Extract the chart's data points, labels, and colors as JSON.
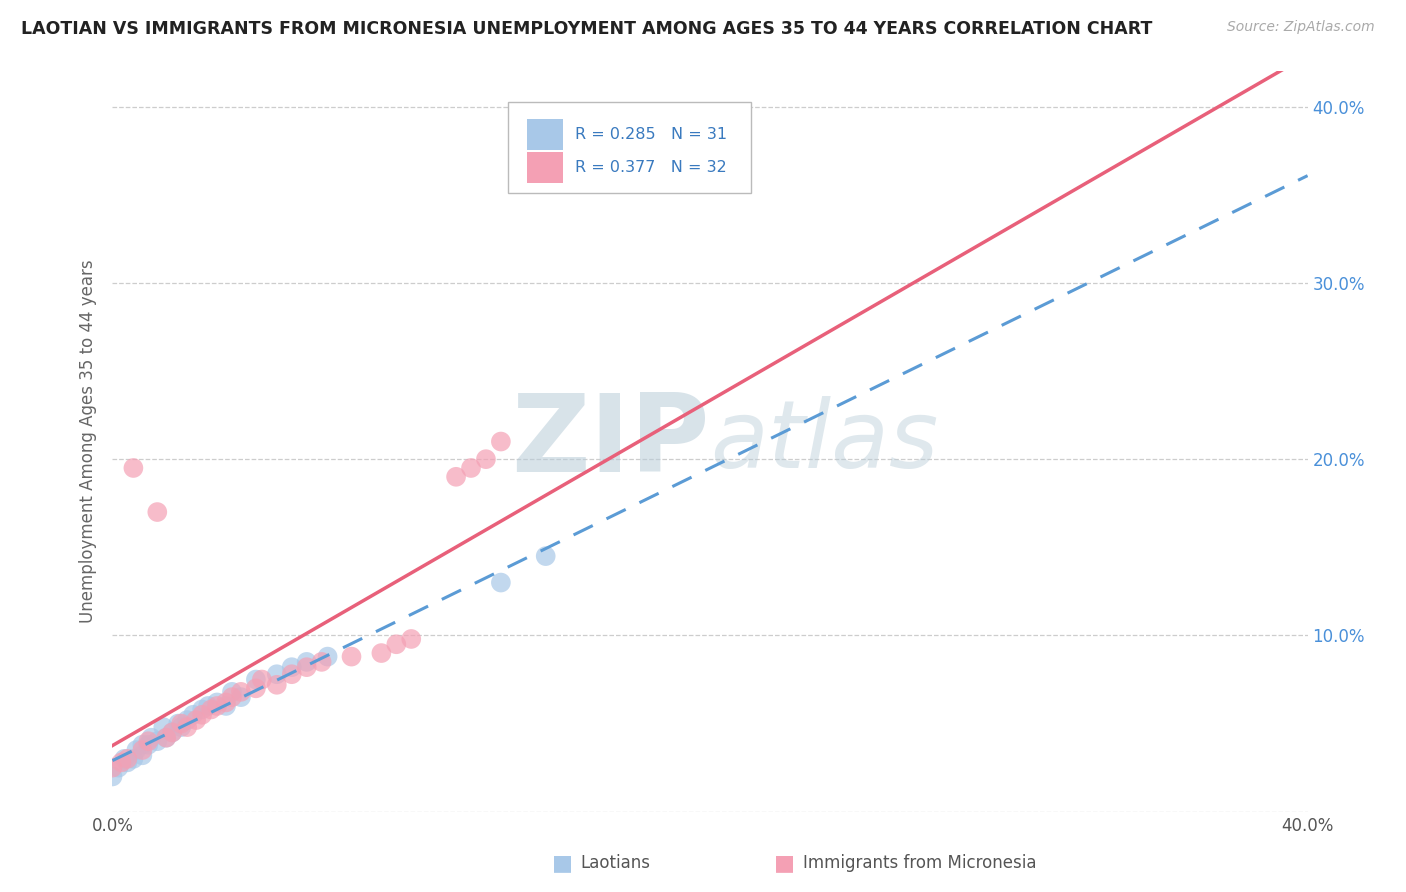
{
  "title": "LAOTIAN VS IMMIGRANTS FROM MICRONESIA UNEMPLOYMENT AMONG AGES 35 TO 44 YEARS CORRELATION CHART",
  "source": "Source: ZipAtlas.com",
  "ylabel": "Unemployment Among Ages 35 to 44 years",
  "r_laotian": 0.285,
  "n_laotian": 31,
  "r_micronesia": 0.377,
  "n_micronesia": 32,
  "xlim": [
    0.0,
    0.4
  ],
  "ylim": [
    0.0,
    0.42
  ],
  "laotian_color": "#a8c8e8",
  "micronesia_color": "#f4a0b4",
  "laotian_line_color": "#5b9bd5",
  "micronesia_line_color": "#e8607a",
  "background_color": "#ffffff",
  "grid_color": "#c8c8c8",
  "watermark_color": "#c8d8e8",
  "laotian_x": [
    0.0,
    0.002,
    0.004,
    0.005,
    0.007,
    0.008,
    0.01,
    0.01,
    0.012,
    0.013,
    0.015,
    0.017,
    0.018,
    0.02,
    0.022,
    0.023,
    0.025,
    0.027,
    0.03,
    0.032,
    0.035,
    0.038,
    0.04,
    0.043,
    0.048,
    0.055,
    0.06,
    0.065,
    0.072,
    0.13,
    0.145
  ],
  "laotian_y": [
    0.02,
    0.025,
    0.03,
    0.028,
    0.03,
    0.035,
    0.032,
    0.038,
    0.038,
    0.042,
    0.04,
    0.048,
    0.042,
    0.045,
    0.05,
    0.048,
    0.052,
    0.055,
    0.058,
    0.06,
    0.062,
    0.06,
    0.068,
    0.065,
    0.075,
    0.078,
    0.082,
    0.085,
    0.088,
    0.13,
    0.145
  ],
  "micronesia_x": [
    0.0,
    0.003,
    0.005,
    0.007,
    0.01,
    0.012,
    0.015,
    0.018,
    0.02,
    0.023,
    0.025,
    0.028,
    0.03,
    0.033,
    0.035,
    0.038,
    0.04,
    0.043,
    0.048,
    0.05,
    0.055,
    0.06,
    0.065,
    0.07,
    0.08,
    0.09,
    0.095,
    0.1,
    0.115,
    0.12,
    0.125,
    0.13
  ],
  "micronesia_y": [
    0.025,
    0.028,
    0.03,
    0.195,
    0.035,
    0.04,
    0.17,
    0.042,
    0.045,
    0.05,
    0.048,
    0.052,
    0.055,
    0.058,
    0.06,
    0.062,
    0.065,
    0.068,
    0.07,
    0.075,
    0.072,
    0.078,
    0.082,
    0.085,
    0.088,
    0.09,
    0.095,
    0.098,
    0.19,
    0.195,
    0.2,
    0.21
  ]
}
